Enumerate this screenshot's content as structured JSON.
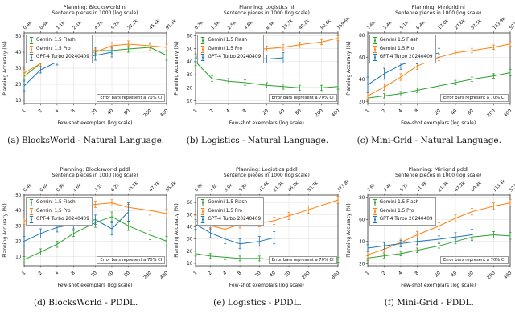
{
  "figure": {
    "background": "#ffffff",
    "grid_color": "#dcdcdc",
    "axis_color": "#333333",
    "legend": {
      "items": [
        {
          "label": "Gemini 1.5 Flash",
          "color": "#2ca02c"
        },
        {
          "label": "Gemini 1.5 Pro",
          "color": "#ff7f0e"
        },
        {
          "label": "GPT-4 Turbo 20240409",
          "color": "#1f77b4"
        }
      ]
    }
  },
  "chart_data": [
    {
      "id": "a",
      "type": "line",
      "x_scale": "log",
      "title": "Planning: Blocksworld nl",
      "top_axis_label": "Sentence pieces in 1000 (log scale)",
      "xlabel": "Few-shot exemplars (log scale)",
      "ylabel": "Planning Accuracy (%)",
      "annotation": "Error bars represent a 70% CI",
      "caption": "(a) BlocksWorld - Natural Language.",
      "x_ticks": [
        1,
        2,
        4,
        8,
        20,
        40,
        80,
        200,
        400
      ],
      "top_ticks": [
        "0.4k",
        "0.8k",
        "1.1k",
        "2.1k",
        "4.7k",
        "9.2k",
        "22.2k",
        "45.6k",
        "91.1k"
      ],
      "y_ticks": [
        10,
        20,
        30,
        40,
        50
      ],
      "ylim": [
        8,
        52
      ],
      "series": [
        {
          "name": "Gemini 1.5 Flash",
          "color": "#2ca02c",
          "x": [
            1,
            2,
            4,
            8,
            20,
            40,
            80,
            200,
            400
          ],
          "y": [
            25,
            33,
            36,
            40,
            41,
            41,
            42,
            43,
            38
          ],
          "err": [
            2,
            2,
            2,
            2,
            2,
            2,
            2,
            2,
            3
          ]
        },
        {
          "name": "Gemini 1.5 Pro",
          "color": "#ff7f0e",
          "x": [
            1,
            2,
            4,
            8,
            20,
            40,
            80,
            200,
            400
          ],
          "y": [
            27,
            33,
            37,
            39,
            40,
            44,
            45,
            44,
            43
          ],
          "err": [
            2,
            2,
            2,
            2,
            2,
            2,
            2,
            2,
            2
          ]
        },
        {
          "name": "GPT-4 Turbo 20240409",
          "color": "#1f77b4",
          "x": [
            1,
            2,
            4,
            8,
            20,
            40
          ],
          "y": [
            19,
            29,
            34,
            36,
            38,
            40
          ],
          "err": [
            3,
            2,
            2,
            2,
            3,
            3
          ]
        }
      ]
    },
    {
      "id": "b",
      "type": "line",
      "x_scale": "log",
      "title": "Planning: Logistics nl",
      "top_axis_label": "Sentence pieces in 1000 (log scale)",
      "xlabel": "Few-shot exemplars (log scale)",
      "ylabel": "Planning Accuracy (%)",
      "annotation": "Error bars represent a 70% CI",
      "caption": "(b) Logistics - Natural Language.",
      "x_ticks": [
        1,
        2,
        4,
        8,
        20,
        40,
        80,
        200,
        400
      ],
      "top_ticks": [
        "0.7k",
        "1.3k",
        "2.5k",
        "4.8k",
        "8.3k",
        "16.3k",
        "40.2k",
        "80.6k",
        "159.6k"
      ],
      "y_ticks": [
        10,
        20,
        30,
        40,
        50,
        60
      ],
      "ylim": [
        8,
        62
      ],
      "series": [
        {
          "name": "Gemini 1.5 Flash",
          "color": "#2ca02c",
          "x": [
            1,
            2,
            4,
            8,
            20,
            40,
            80,
            200,
            400
          ],
          "y": [
            40,
            27,
            25,
            24,
            22,
            21,
            20,
            20,
            21
          ],
          "err": [
            3,
            2,
            2,
            2,
            2,
            2,
            2,
            2,
            2
          ]
        },
        {
          "name": "Gemini 1.5 Pro",
          "color": "#ff7f0e",
          "x": [
            1,
            2,
            4,
            8,
            20,
            40,
            80,
            200,
            400
          ],
          "y": [
            44,
            45,
            47,
            48,
            50,
            51,
            53,
            55,
            58
          ],
          "err": [
            2,
            2,
            2,
            2,
            2,
            2,
            2,
            2,
            2
          ]
        },
        {
          "name": "GPT-4 Turbo 20240409",
          "color": "#1f77b4",
          "x": [
            1,
            2,
            4,
            8,
            20,
            40
          ],
          "y": [
            43,
            42,
            43,
            44,
            42,
            43
          ],
          "err": [
            3,
            3,
            4,
            3,
            3,
            4
          ]
        }
      ]
    },
    {
      "id": "c",
      "type": "line",
      "x_scale": "log",
      "title": "Planning: Minigrid nl",
      "top_axis_label": "Sentence pieces in 1000 (log scale)",
      "xlabel": "Few-shot exemplars (log scale)",
      "ylabel": "Planning Accuracy (%)",
      "annotation": "Error bars represent a 70% CI",
      "caption": "(c) Mini-Grid - Natural Language.",
      "x_ticks": [
        1,
        2,
        4,
        8,
        20,
        40,
        80,
        200,
        400
      ],
      "top_ticks": [
        "2.6k",
        "3.4k",
        "5.1k",
        "8.4k",
        "17.0k",
        "27.6k",
        "57.5k",
        "133.9k",
        "523.7k"
      ],
      "y_ticks": [
        20,
        40,
        60,
        80
      ],
      "ylim": [
        18,
        82
      ],
      "series": [
        {
          "name": "Gemini 1.5 Flash",
          "color": "#2ca02c",
          "x": [
            1,
            2,
            4,
            8,
            20,
            40,
            80,
            200,
            400
          ],
          "y": [
            23,
            25,
            27,
            30,
            34,
            37,
            40,
            43,
            46
          ],
          "err": [
            2,
            2,
            2,
            2,
            2,
            2,
            2,
            2,
            3
          ]
        },
        {
          "name": "Gemini 1.5 Pro",
          "color": "#ff7f0e",
          "x": [
            1,
            2,
            4,
            8,
            20,
            40,
            80,
            200,
            400
          ],
          "y": [
            25,
            33,
            42,
            52,
            60,
            64,
            66,
            69,
            72
          ],
          "err": [
            3,
            3,
            3,
            3,
            3,
            2,
            2,
            2,
            2
          ]
        },
        {
          "name": "GPT-4 Turbo 20240409",
          "color": "#1f77b4",
          "x": [
            1,
            2,
            4,
            8,
            20
          ],
          "y": [
            35,
            45,
            53,
            58,
            64
          ],
          "err": [
            7,
            5,
            4,
            4,
            4
          ]
        }
      ]
    },
    {
      "id": "d",
      "type": "line",
      "x_scale": "log",
      "title": "Planning: Blocksworld pddl",
      "top_axis_label": "Sentence pieces in 1000 (log scale)",
      "xlabel": "Few-shot exemplars (log scale)",
      "ylabel": "Planning Accuracy (%)",
      "annotation": "Error bars represent a 70% CI",
      "caption": "(d) BlocksWorld - PDDL.",
      "x_ticks": [
        1,
        2,
        4,
        8,
        20,
        40,
        80,
        200,
        400
      ],
      "top_ticks": [
        "0.4k",
        "0.6k",
        "0.9k",
        "1.6k",
        "3.1k",
        "6.2k",
        "15.1k",
        "47.7k",
        "95.2k"
      ],
      "y_ticks": [
        10,
        20,
        30,
        40,
        50
      ],
      "ylim": [
        4,
        50
      ],
      "series": [
        {
          "name": "Gemini 1.5 Flash",
          "color": "#2ca02c",
          "x": [
            1,
            2,
            4,
            8,
            20,
            40,
            80,
            200,
            400
          ],
          "y": [
            8,
            13,
            18,
            25,
            32,
            36,
            30,
            24,
            20
          ],
          "err": [
            2,
            2,
            2,
            2,
            3,
            3,
            3,
            3,
            3
          ]
        },
        {
          "name": "Gemini 1.5 Pro",
          "color": "#ff7f0e",
          "x": [
            1,
            2,
            4,
            8,
            20,
            40,
            80,
            200,
            400
          ],
          "y": [
            33,
            36,
            39,
            42,
            44,
            45,
            42,
            40,
            38
          ],
          "err": [
            2,
            2,
            2,
            2,
            2,
            2,
            2,
            3,
            3
          ]
        },
        {
          "name": "GPT-4 Turbo 20240409",
          "color": "#1f77b4",
          "x": [
            1,
            2,
            4,
            8,
            20,
            40,
            80
          ],
          "y": [
            20,
            25,
            29,
            31,
            34,
            28,
            39
          ],
          "err": [
            3,
            3,
            3,
            3,
            3,
            4,
            6
          ]
        }
      ]
    },
    {
      "id": "e",
      "type": "line",
      "x_scale": "log",
      "title": "Planning: Logistics pddl",
      "top_axis_label": "Sentence pieces in 1000 (log scale)",
      "xlabel": "Few-shot exemplars (log scale)",
      "ylabel": "Planning Accuracy (%)",
      "annotation": "Error bars represent a 70% CI",
      "caption": "(e) Logistics - PDDL.",
      "x_ticks": [
        1,
        2,
        4,
        8,
        20,
        40,
        80,
        200,
        800
      ],
      "top_ticks": [
        "0.9k",
        "1.6k",
        "3.0k",
        "5.8k",
        "11.4k",
        "21.9k",
        "46.8k",
        "93.7k",
        "373.8k"
      ],
      "y_ticks": [
        10,
        20,
        30,
        40,
        50,
        60
      ],
      "ylim": [
        8,
        66
      ],
      "series": [
        {
          "name": "Gemini 1.5 Flash",
          "color": "#2ca02c",
          "x": [
            1,
            2,
            4,
            8,
            20,
            40,
            80,
            200,
            800
          ],
          "y": [
            18,
            16,
            15,
            14,
            14,
            13,
            13,
            13,
            13
          ],
          "err": [
            2,
            2,
            2,
            2,
            2,
            2,
            2,
            2,
            2
          ]
        },
        {
          "name": "Gemini 1.5 Pro",
          "color": "#ff7f0e",
          "x": [
            1,
            2,
            4,
            8,
            20,
            40,
            80,
            200,
            800
          ],
          "y": [
            45,
            41,
            38,
            42,
            43,
            45,
            49,
            54,
            62
          ],
          "err": [
            4,
            3,
            4,
            3,
            3,
            3,
            3,
            3,
            3
          ]
        },
        {
          "name": "GPT-4 Turbo 20240409",
          "color": "#1f77b4",
          "x": [
            1,
            2,
            4,
            8,
            20,
            40
          ],
          "y": [
            42,
            35,
            30,
            26,
            28,
            31
          ],
          "err": [
            4,
            4,
            4,
            4,
            4,
            5
          ]
        }
      ]
    },
    {
      "id": "f",
      "type": "line",
      "x_scale": "log",
      "title": "Planning: Minigrid pddl",
      "top_axis_label": "Sentence pieces in 1000 (log scale)",
      "xlabel": "Few-shot exemplars (log scale)",
      "ylabel": "Planning Accuracy (%)",
      "annotation": "Error bars represent a 70% CI",
      "caption": "(f) Mini-Grid - PDDL.",
      "x_ticks": [
        1,
        2,
        4,
        8,
        20,
        40,
        80,
        200,
        400
      ],
      "top_ticks": [
        "2.6k",
        "3.4k",
        "5.7k",
        "11.0k",
        "21.9k",
        "47.2k",
        "60.8k",
        "133.4k",
        "523.7k"
      ],
      "y_ticks": [
        20,
        40,
        60,
        80
      ],
      "ylim": [
        18,
        82
      ],
      "series": [
        {
          "name": "Gemini 1.5 Flash",
          "color": "#2ca02c",
          "x": [
            1,
            2,
            4,
            8,
            20,
            40,
            80,
            200,
            400
          ],
          "y": [
            25,
            27,
            29,
            32,
            36,
            40,
            44,
            46,
            45
          ],
          "err": [
            2,
            2,
            2,
            2,
            2,
            2,
            2,
            3,
            3
          ]
        },
        {
          "name": "Gemini 1.5 Pro",
          "color": "#ff7f0e",
          "x": [
            1,
            2,
            4,
            8,
            20,
            40,
            80,
            200,
            400
          ],
          "y": [
            28,
            33,
            39,
            46,
            54,
            61,
            67,
            72,
            75
          ],
          "err": [
            3,
            3,
            3,
            3,
            3,
            3,
            3,
            3,
            3
          ]
        },
        {
          "name": "GPT-4 Turbo 20240409",
          "color": "#1f77b4",
          "x": [
            1,
            2,
            4,
            8,
            20,
            40,
            80
          ],
          "y": [
            34,
            36,
            38,
            40,
            42,
            44,
            46
          ],
          "err": [
            3,
            3,
            3,
            3,
            3,
            4,
            5
          ]
        }
      ]
    }
  ]
}
